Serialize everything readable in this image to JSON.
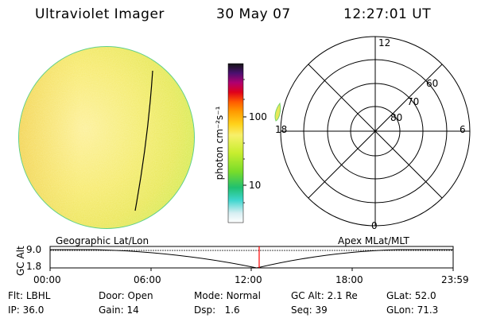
{
  "header": {
    "instrument": "Ultraviolet Imager",
    "date": "30 May 07",
    "time": "12:27:01 UT"
  },
  "colorbar": {
    "unit_label": "photon cm⁻²s⁻¹",
    "tick_100": "100",
    "tick_10": "10"
  },
  "polar": {
    "mlt_12": "12",
    "mlt_18": "18",
    "mlt_6": "6",
    "mlt_0": "0",
    "lat_60": "60",
    "lat_70": "70",
    "lat_80": "80"
  },
  "timeline": {
    "left_caption": "Geographic Lat/Lon",
    "right_caption": "Apex MLat/MLT",
    "y_axis_label": "GC Alt",
    "y_top": "9.0",
    "y_bottom": "1.8",
    "x_ticks": [
      "00:00",
      "06:00",
      "12:00",
      "18:00",
      "23:59"
    ],
    "current_time_fraction": 0.5188
  },
  "info": {
    "flt_label": "Flt:",
    "flt_value": "LBHL",
    "ip_label": "IP:",
    "ip_value": "36.0",
    "door_label": "Door:",
    "door_value": "Open",
    "gain_label": "Gain:",
    "gain_value": "14",
    "mode_label": "Mode:",
    "mode_value": "Normal",
    "dsp_label": "Dsp:",
    "dsp_value": "1.6",
    "gcalt_label": "GC Alt:",
    "gcalt_value": "2.1 Re",
    "seq_label": "Seq:",
    "seq_value": "39",
    "glat_label": "GLat:",
    "glat_value": "52.0",
    "glon_label": "GLon:",
    "glon_value": "71.3"
  }
}
